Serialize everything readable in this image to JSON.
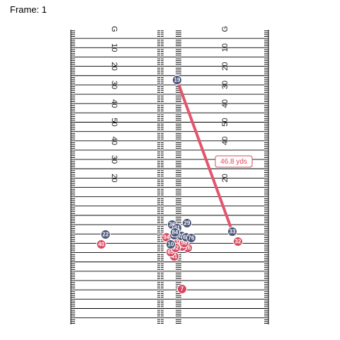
{
  "frame": {
    "label": "Frame: 1"
  },
  "colors": {
    "offense_fill": "#4a5577",
    "defense_fill": "#d7485f",
    "pass_line": "#e4566c",
    "distance_border": "#d7485f",
    "distance_text": "#d7485f"
  },
  "field": {
    "yard_labels": [
      {
        "text": "G",
        "yardline": 0
      },
      {
        "text": "10",
        "yardline": 10
      },
      {
        "text": "20",
        "yardline": 20
      },
      {
        "text": "30",
        "yardline": 30
      },
      {
        "text": "40",
        "yardline": 40
      },
      {
        "text": "50",
        "yardline": 50
      },
      {
        "text": "40",
        "yardline": 60
      },
      {
        "text": "30",
        "yardline": 70
      },
      {
        "text": "20",
        "yardline": 80
      }
    ]
  },
  "pass": {
    "from": "19",
    "to": "33",
    "distance_label": "46.8 yds"
  },
  "players": [
    {
      "number": "19",
      "team": "offense"
    },
    {
      "number": "22",
      "team": "offense"
    },
    {
      "number": "40",
      "team": "defense"
    },
    {
      "number": "36",
      "team": "offense"
    },
    {
      "number": "29",
      "team": "offense"
    },
    {
      "number": "33",
      "team": "offense"
    },
    {
      "number": "32",
      "team": "defense"
    },
    {
      "number": "7",
      "team": "defense"
    },
    {
      "number": "94",
      "team": "defense"
    },
    {
      "number": "38",
      "team": "defense"
    },
    {
      "number": "16",
      "team": "defense"
    },
    {
      "number": "41",
      "team": "defense"
    },
    {
      "number": "65",
      "team": "defense"
    },
    {
      "number": "69",
      "team": "defense"
    },
    {
      "number": "92",
      "team": "defense"
    },
    {
      "number": "98",
      "team": "defense"
    },
    {
      "number": "37",
      "team": "offense"
    },
    {
      "number": "21",
      "team": "offense"
    },
    {
      "number": "63",
      "team": "offense"
    },
    {
      "number": "76",
      "team": "offense"
    },
    {
      "number": "71",
      "team": "offense"
    },
    {
      "number": "10",
      "team": "offense"
    },
    {
      "number": "84",
      "team": "offense"
    }
  ]
}
